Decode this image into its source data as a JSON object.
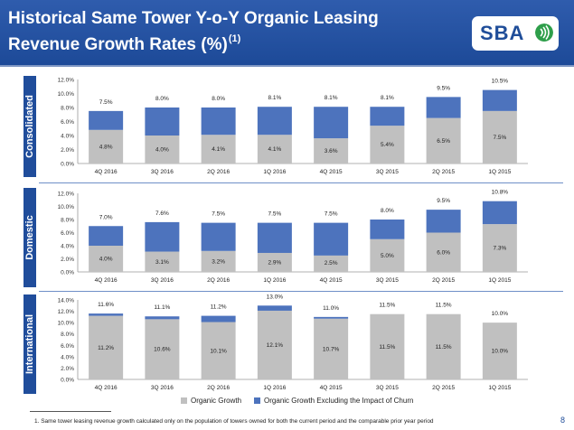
{
  "slide": {
    "title_line1": "Historical Same Tower Y-o-Y Organic Leasing",
    "title_line2": "Revenue Growth Rates (%)",
    "title_sup": "(1)",
    "logo": "SBA",
    "footnote": "1.   Same tower leasing revenue growth calculated only on the population of towers owned for both the current period and the comparable prior year period",
    "page_number": "8"
  },
  "colors": {
    "organic": "#c0c0c0",
    "excluding_churn": "#4d73bd",
    "header": "#2452a3",
    "sidebar": "#204d9b"
  },
  "legend": [
    {
      "label": "Organic Growth",
      "color": "#c0c0c0"
    },
    {
      "label": "Organic Growth Excluding the Impact of Churn",
      "color": "#4d73bd"
    }
  ],
  "chart_data": [
    {
      "type": "bar",
      "panel_label": "Consolidated",
      "categories": [
        "4Q 2016",
        "3Q 2016",
        "2Q 2016",
        "1Q 2016",
        "4Q 2015",
        "3Q 2015",
        "2Q 2015",
        "1Q 2015"
      ],
      "series": [
        {
          "name": "Organic Growth",
          "values": [
            4.8,
            4.0,
            4.1,
            4.1,
            3.6,
            5.4,
            6.5,
            7.5
          ]
        },
        {
          "name": "Organic Growth Excluding the Impact of Churn",
          "values": [
            7.5,
            8.0,
            8.0,
            8.1,
            8.1,
            8.1,
            9.5,
            10.5
          ]
        }
      ],
      "inner_labels": [
        "4.8%",
        "4.0%",
        "4.1%",
        "4.1%",
        "3.6%",
        "5.4%",
        "6.5%",
        "7.5%"
      ],
      "top_labels": [
        "7.5%",
        "8.0%",
        "8.0%",
        "8.1%",
        "8.1%",
        "8.1%",
        "9.5%",
        "10.5%"
      ],
      "ylim": [
        0,
        12
      ],
      "yticks": [
        "0.0%",
        "2.0%",
        "4.0%",
        "6.0%",
        "8.0%",
        "10.0%",
        "12.0%"
      ],
      "ytick_values": [
        0,
        2,
        4,
        6,
        8,
        10,
        12
      ]
    },
    {
      "type": "bar",
      "panel_label": "Domestic",
      "categories": [
        "4Q 2016",
        "3Q 2016",
        "2Q 2016",
        "1Q 2016",
        "4Q 2015",
        "3Q 2015",
        "2Q 2015",
        "1Q 2015"
      ],
      "series": [
        {
          "name": "Organic Growth",
          "values": [
            4.0,
            3.1,
            3.2,
            2.9,
            2.5,
            5.0,
            6.0,
            7.3
          ]
        },
        {
          "name": "Organic Growth Excluding the Impact of Churn",
          "values": [
            7.0,
            7.6,
            7.5,
            7.5,
            7.5,
            8.0,
            9.5,
            10.8
          ]
        }
      ],
      "inner_labels": [
        "4.0%",
        "3.1%",
        "3.2%",
        "2.9%",
        "2.5%",
        "5.0%",
        "6.0%",
        "7.3%"
      ],
      "top_labels": [
        "7.0%",
        "7.6%",
        "7.5%",
        "7.5%",
        "7.5%",
        "8.0%",
        "9.5%",
        "10.8%"
      ],
      "ylim": [
        0,
        12
      ],
      "yticks": [
        "0.0%",
        "2.0%",
        "4.0%",
        "6.0%",
        "8.0%",
        "10.0%",
        "12.0%"
      ],
      "ytick_values": [
        0,
        2,
        4,
        6,
        8,
        10,
        12
      ]
    },
    {
      "type": "bar",
      "panel_label": "International",
      "categories": [
        "4Q 2016",
        "3Q 2016",
        "2Q 2016",
        "1Q 2016",
        "4Q 2015",
        "3Q 2015",
        "2Q 2015",
        "1Q 2015"
      ],
      "series": [
        {
          "name": "Organic Growth",
          "values": [
            11.2,
            10.6,
            10.1,
            12.1,
            10.7,
            11.5,
            11.5,
            10.0
          ]
        },
        {
          "name": "Organic Growth Excluding the Impact of Churn",
          "values": [
            11.6,
            11.1,
            11.2,
            13.0,
            11.0,
            11.5,
            11.5,
            10.0
          ]
        }
      ],
      "inner_labels": [
        "11.2%",
        "10.6%",
        "10.1%",
        "12.1%",
        "10.7%",
        "11.5%",
        "11.5%",
        "10.0%"
      ],
      "top_labels": [
        "11.6%",
        "11.1%",
        "11.2%",
        "13.0%",
        "11.0%",
        "11.5%",
        "11.5%",
        "10.0%"
      ],
      "ylim": [
        0,
        14
      ],
      "yticks": [
        "0.0%",
        "2.0%",
        "4.0%",
        "6.0%",
        "8.0%",
        "10.0%",
        "12.0%",
        "14.0%"
      ],
      "ytick_values": [
        0,
        2,
        4,
        6,
        8,
        10,
        12,
        14
      ]
    }
  ]
}
